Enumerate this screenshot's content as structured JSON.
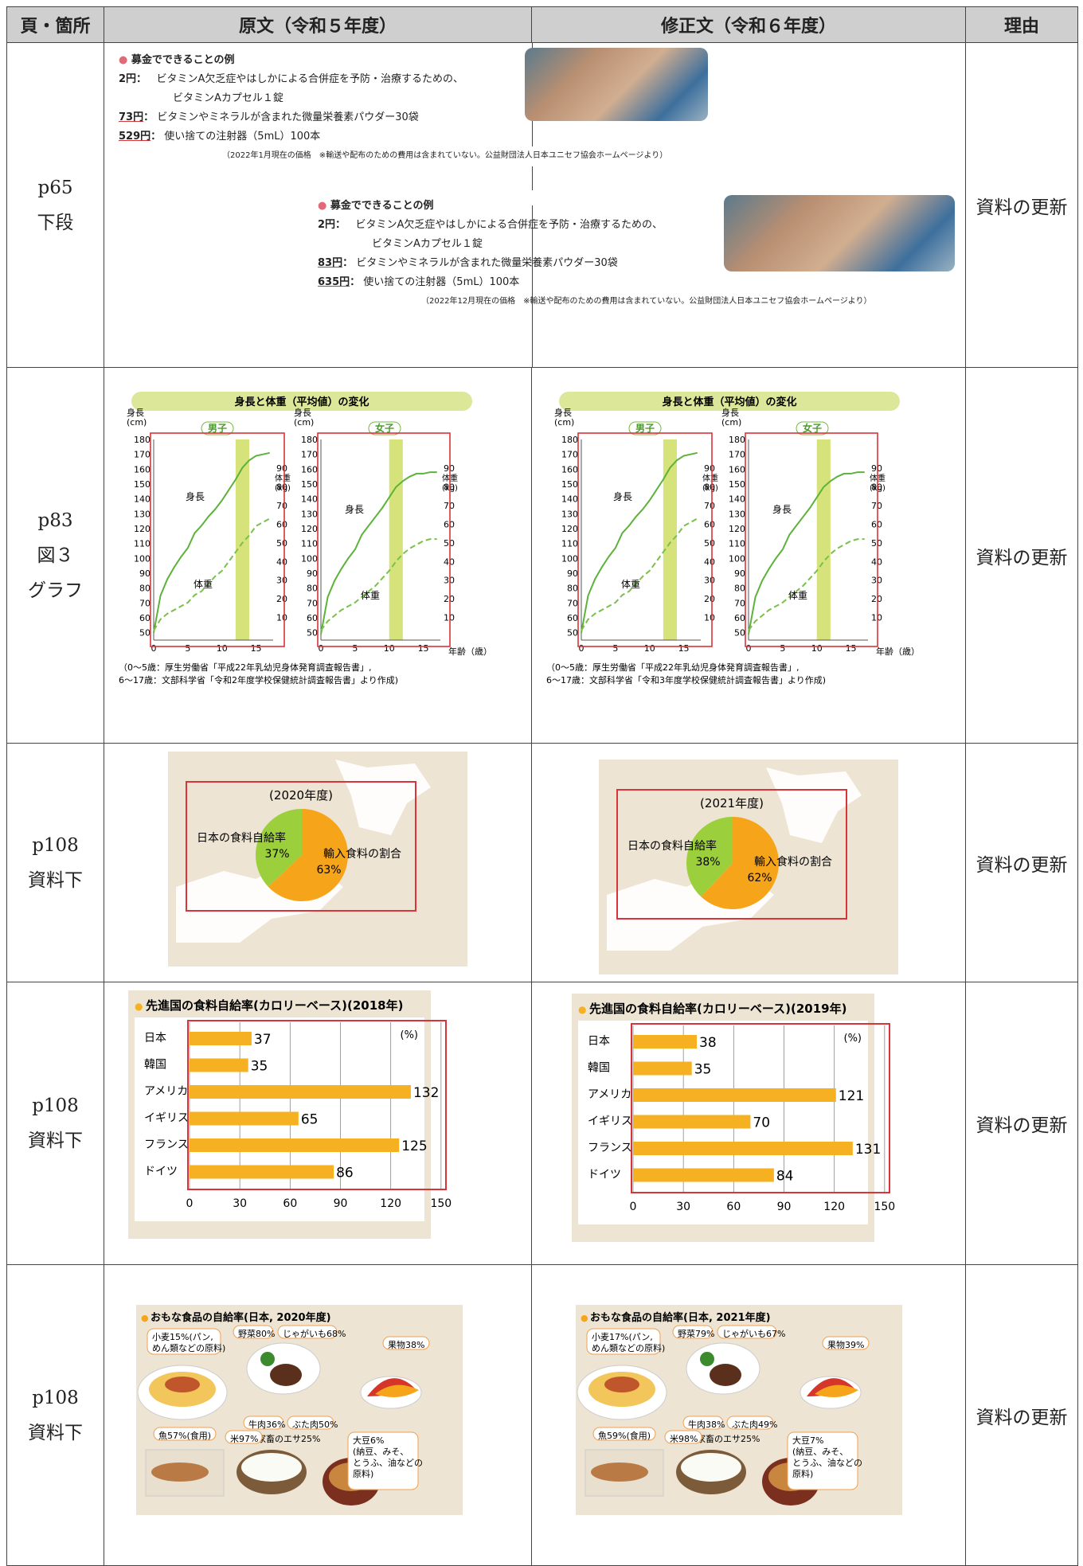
{
  "header": {
    "col_page": "頁・箇所",
    "col_original": "原文（令和５年度）",
    "col_revised": "修正文（令和６年度）",
    "col_reason": "理由"
  },
  "rows": [
    {
      "page": [
        "p65",
        "下段"
      ],
      "reason": "資料の更新",
      "original": {
        "title": "募金でできることの例",
        "items": [
          {
            "amount": "2円",
            "text": "ビタミンA欠乏症やはしかによる合併症を予防・治療するための、",
            "text2": "ビタミンAカプセル１錠"
          },
          {
            "amount": "73円",
            "text": "ビタミンやミネラルが含まれた微量栄養素パウダー30袋"
          },
          {
            "amount": "529円",
            "text": "使い捨ての注射器（5mL）100本"
          }
        ],
        "note": "（2022年1月現在の価格　※輸送や配布のための費用は含まれていない。公益財団法人日本ユニセフ協会ホームページより）"
      },
      "revised": {
        "title": "募金でできることの例",
        "items": [
          {
            "amount": "2円",
            "text": "ビタミンA欠乏症やはしかによる合併症を予防・治療するための、",
            "text2": "ビタミンAカプセル１錠"
          },
          {
            "amount": "83円",
            "text": "ビタミンやミネラルが含まれた微量栄養素パウダー30袋"
          },
          {
            "amount": "635円",
            "text": "使い捨ての注射器（5mL）100本"
          }
        ],
        "note": "（2022年12月現在の価格　※輸送や配布のための費用は含まれていない。公益財団法人日本ユニセフ協会ホームページより）"
      }
    },
    {
      "page": [
        "p83",
        "図３",
        "グラフ"
      ],
      "reason": "資料の更新",
      "original": {
        "title": "身長と体重（平均値）の変化",
        "boy": "男子",
        "girl": "女子",
        "height_label": "身長",
        "weight_label": "体重",
        "yleft_title": "身長",
        "yleft_unit": "(cm)",
        "yright_title": "体重",
        "yright_unit": "(kg)",
        "xlabel": "年齢（歳）",
        "source1": "（0～5歳：厚生労働省「平成22年乳幼児身体発育調査報告書」,",
        "source2": "6～17歳：文部科学省「令和2年度学校保健統計調査報告書」より作成)"
      },
      "revised": {
        "title": "身長と体重（平均値）の変化",
        "boy": "男子",
        "girl": "女子",
        "height_label": "身長",
        "weight_label": "体重",
        "yleft_title": "身長",
        "yleft_unit": "(cm)",
        "yright_title": "体重",
        "yright_unit": "(kg)",
        "xlabel": "年齢（歳）",
        "source1": "（0～5歳：厚生労働省「平成22年乳幼児身体発育調査報告書」,",
        "source2": "6～17歳：文部科学省「令和3年度学校保健統計調査報告書」より作成)"
      }
    },
    {
      "page": [
        "p108",
        "資料下"
      ],
      "reason": "資料の更新",
      "original": {
        "year": "(2020年度)",
        "self_label": "日本の食料自給率",
        "self_pct": "37%",
        "import_label": "輸入食料の割合",
        "import_pct": "63%"
      },
      "revised": {
        "year": "(2021年度)",
        "self_label": "日本の食料自給率",
        "self_pct": "38%",
        "import_label": "輸入食料の割合",
        "import_pct": "62%"
      }
    },
    {
      "page": [
        "p108",
        "資料下"
      ],
      "reason": "資料の更新",
      "original": {
        "title": "先進国の食料自給率(カロリーベース)(2018年)",
        "unit": "(%)"
      },
      "revised": {
        "title": "先進国の食料自給率(カロリーベース)(2019年)",
        "unit": "(%)"
      }
    },
    {
      "page": [
        "p108",
        "資料下"
      ],
      "reason": "資料の更新",
      "original": {
        "title": "おもな食品の自給率(日本, 2020年度)",
        "labels": [
          "小麦15%(パン,",
          "めん類などの原料)",
          "野菜80%",
          "じゃがいも68%",
          "果物38%",
          "牛肉36%",
          "ぶた肉50%",
          "家畜のエサ25%",
          "魚57%(食用)",
          "米97%",
          "大豆6%",
          "(納豆、みそ、",
          "とうふ、油などの",
          "原料)"
        ]
      },
      "revised": {
        "title": "おもな食品の自給率(日本, 2021年度)",
        "labels": [
          "小麦17%(パン,",
          "めん類などの原料)",
          "野菜79%",
          "じゃがいも67%",
          "果物39%",
          "牛肉38%",
          "ぶた肉49%",
          "家畜のエサ25%",
          "魚59%(食用)",
          "米98%",
          "大豆7%",
          "(納豆、みそ、",
          "とうふ、油などの",
          "原料)"
        ]
      }
    }
  ],
  "chart_data": [
    {
      "type": "line",
      "title": "身長と体重（平均値）の変化",
      "panel": "男子",
      "x": [
        0,
        1,
        2,
        3,
        4,
        5,
        6,
        7,
        8,
        9,
        10,
        11,
        12,
        13,
        14,
        15,
        16,
        17
      ],
      "series": [
        {
          "name": "身長",
          "values": [
            50,
            75,
            86,
            94,
            101,
            107,
            117,
            122,
            128,
            133,
            139,
            146,
            153,
            161,
            166,
            169,
            170,
            171
          ]
        },
        {
          "name": "体重",
          "values": [
            3,
            9,
            12,
            14,
            16,
            18,
            22,
            24,
            28,
            32,
            35,
            40,
            45,
            50,
            54,
            59,
            61,
            63
          ]
        }
      ],
      "xlabel": "年齢（歳）",
      "ylabel": "身長 (cm)",
      "y2label": "体重 (kg)",
      "ylim": [
        45,
        180
      ],
      "y2lim": [
        0,
        100
      ],
      "highlight": [
        12,
        14
      ]
    },
    {
      "type": "line",
      "title": "身長と体重（平均値）の変化",
      "panel": "女子",
      "x": [
        0,
        1,
        2,
        3,
        4,
        5,
        6,
        7,
        8,
        9,
        10,
        11,
        12,
        13,
        14,
        15,
        16,
        17
      ],
      "series": [
        {
          "name": "身長",
          "values": [
            49,
            74,
            85,
            93,
            100,
            106,
            116,
            122,
            128,
            134,
            141,
            148,
            152,
            155,
            157,
            157,
            158,
            158
          ]
        },
        {
          "name": "体重",
          "values": [
            3,
            8,
            11,
            14,
            16,
            18,
            21,
            24,
            27,
            31,
            35,
            40,
            44,
            47,
            49,
            51,
            52,
            52
          ]
        }
      ],
      "xlabel": "年齢（歳）",
      "ylabel": "身長 (cm)",
      "y2label": "体重 (kg)",
      "ylim": [
        45,
        180
      ],
      "y2lim": [
        0,
        100
      ],
      "highlight": [
        10,
        12
      ]
    },
    {
      "type": "pie",
      "categories": [
        "日本の食料自給率",
        "輸入食料の割合"
      ],
      "values_original": [
        37,
        63
      ],
      "values_revised": [
        38,
        62
      ],
      "colors": [
        "#9ccf3c",
        "#f6a51a"
      ]
    },
    {
      "type": "bar",
      "title": "先進国の食料自給率(カロリーベース)",
      "categories": [
        "日本",
        "韓国",
        "アメリカ",
        "イギリス",
        "フランス",
        "ドイツ"
      ],
      "series": [
        {
          "name": "2018年",
          "values": [
            37,
            35,
            132,
            65,
            125,
            86
          ]
        },
        {
          "name": "2019年",
          "values": [
            38,
            35,
            121,
            70,
            131,
            84
          ]
        }
      ],
      "xlim": [
        0,
        150
      ],
      "ticks": [
        0,
        30,
        60,
        90,
        120,
        150
      ],
      "color": "#f6b122"
    }
  ]
}
